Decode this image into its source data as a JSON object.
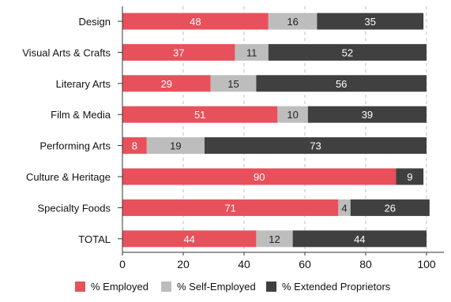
{
  "chart_data": {
    "type": "bar",
    "orientation": "horizontal",
    "stacked": true,
    "title": "",
    "xlabel": "",
    "ylabel": "",
    "xlim": [
      0,
      100
    ],
    "xticks": [
      0,
      20,
      40,
      60,
      80,
      100
    ],
    "grid": "vertical-dashed",
    "legend_position": "bottom",
    "categories": [
      "Design",
      "Visual Arts & Crafts",
      "Literary Arts",
      "Film & Media",
      "Performing Arts",
      "Culture & Heritage",
      "Specialty Foods",
      "TOTAL"
    ],
    "series": [
      {
        "name": "% Employed",
        "color": "#E8505B",
        "label_color": "#ffffff",
        "values": [
          48,
          37,
          29,
          51,
          8,
          90,
          71,
          44
        ],
        "labels": [
          "48",
          "37",
          "29",
          "51",
          "8",
          "90",
          "71",
          "44"
        ]
      },
      {
        "name": "% Self-Employed",
        "color": "#BDBDBD",
        "label_color": "#222222",
        "values": [
          16,
          11,
          15,
          10,
          19,
          0,
          4,
          12
        ],
        "labels": [
          "16",
          "11",
          "15",
          "10",
          "19",
          "",
          "4",
          "12"
        ]
      },
      {
        "name": "% Extended Proprietors",
        "color": "#404040",
        "label_color": "#ffffff",
        "values": [
          35,
          52,
          56,
          39,
          73,
          9,
          26,
          44
        ],
        "labels": [
          "35",
          "52",
          "56",
          "39",
          "73",
          "9",
          "26",
          "44"
        ]
      }
    ]
  }
}
